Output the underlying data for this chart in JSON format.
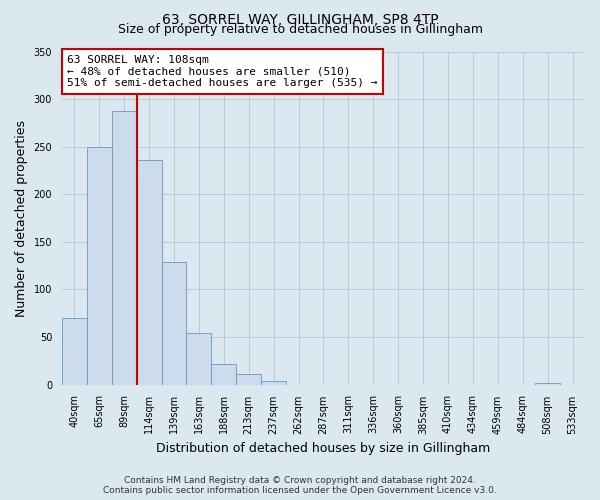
{
  "title": "63, SORREL WAY, GILLINGHAM, SP8 4TP",
  "subtitle": "Size of property relative to detached houses in Gillingham",
  "xlabel": "Distribution of detached houses by size in Gillingham",
  "ylabel": "Number of detached properties",
  "bar_labels": [
    "40sqm",
    "65sqm",
    "89sqm",
    "114sqm",
    "139sqm",
    "163sqm",
    "188sqm",
    "213sqm",
    "237sqm",
    "262sqm",
    "287sqm",
    "311sqm",
    "336sqm",
    "360sqm",
    "385sqm",
    "410sqm",
    "434sqm",
    "459sqm",
    "484sqm",
    "508sqm",
    "533sqm"
  ],
  "bar_values": [
    70,
    250,
    287,
    236,
    129,
    54,
    22,
    11,
    4,
    0,
    0,
    0,
    0,
    0,
    0,
    0,
    0,
    0,
    0,
    2,
    0
  ],
  "bar_color": "#ccdcec",
  "bar_edge_color": "#6699bb",
  "vline_color": "#cc0000",
  "vline_index": 2.5,
  "ylim": [
    0,
    350
  ],
  "yticks": [
    0,
    50,
    100,
    150,
    200,
    250,
    300,
    350
  ],
  "annotation_line1": "63 SORREL WAY: 108sqm",
  "annotation_line2": "← 48% of detached houses are smaller (510)",
  "annotation_line3": "51% of semi-detached houses are larger (535) →",
  "annotation_box_color": "#ffffff",
  "annotation_box_edge": "#cc0000",
  "footer_line1": "Contains HM Land Registry data © Crown copyright and database right 2024.",
  "footer_line2": "Contains public sector information licensed under the Open Government Licence v3.0.",
  "background_color": "#dce8f0",
  "plot_bg_color": "#dce8f0",
  "title_fontsize": 10,
  "subtitle_fontsize": 9,
  "axis_label_fontsize": 9,
  "tick_fontsize": 7,
  "annotation_fontsize": 8,
  "footer_fontsize": 6.5
}
